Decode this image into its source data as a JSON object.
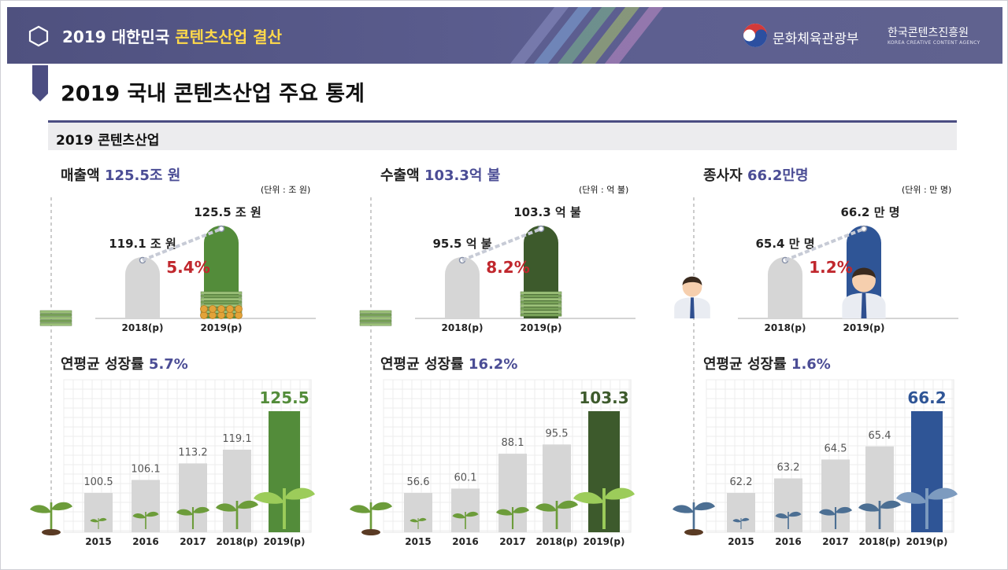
{
  "header": {
    "title_prefix": "2019 대한민국 ",
    "title_highlight": "콘텐츠산업 결산",
    "ministry": "문화체육관광부",
    "agency_kr": "한국콘텐츠진흥원",
    "agency_en": "KOREA CREATIVE CONTENT AGENCY"
  },
  "page_title": "2019 국내 콘텐츠산업 주요 통계",
  "section_title": "2019 콘텐츠산업",
  "colors": {
    "header_bg": "#55578a",
    "accent": "#4b4d95",
    "rate_red": "#c0272d",
    "green": "#538c3a",
    "dark_green": "#3d5a2c",
    "blue": "#2f5596",
    "gray_bar": "#d6d6d6"
  },
  "chart_data": [
    {
      "type": "bar",
      "name": "sales",
      "stat_label": "매출액",
      "stat_value": "125.5조 원",
      "unit_note": "(단위 : 조 원)",
      "comparison": {
        "categories": [
          "2018(p)",
          "2019(p)"
        ],
        "values": [
          119.1,
          125.5
        ],
        "value_labels": [
          "119.1 조 원",
          "125.5 조 원"
        ],
        "change_rate": "5.4%"
      },
      "growth_label": "연평균 성장률",
      "growth_rate": "5.7%",
      "categories": [
        "2015",
        "2016",
        "2017",
        "2018(p)",
        "2019(p)"
      ],
      "values": [
        100.5,
        106.1,
        113.2,
        119.1,
        125.5
      ],
      "value_labels": [
        "100.5",
        "106.1",
        "113.2",
        "119.1",
        "125.5"
      ],
      "highlight_color": "#538c3a",
      "theme": "money"
    },
    {
      "type": "bar",
      "name": "exports",
      "stat_label": "수출액",
      "stat_value": "103.3억 불",
      "unit_note": "(단위 : 억 불)",
      "comparison": {
        "categories": [
          "2018(p)",
          "2019(p)"
        ],
        "values": [
          95.5,
          103.3
        ],
        "value_labels": [
          "95.5 억 불",
          "103.3 억 불"
        ],
        "change_rate": "8.2%"
      },
      "growth_label": "연평균 성장률",
      "growth_rate": "16.2%",
      "categories": [
        "2015",
        "2016",
        "2017",
        "2018(p)",
        "2019(p)"
      ],
      "values": [
        56.6,
        60.1,
        88.1,
        95.5,
        103.3
      ],
      "value_labels": [
        "56.6",
        "60.1",
        "88.1",
        "95.5",
        "103.3"
      ],
      "highlight_color": "#3d5a2c",
      "theme": "money"
    },
    {
      "type": "bar",
      "name": "employees",
      "stat_label": "종사자",
      "stat_value": "66.2만명",
      "unit_note": "(단위 : 만 명)",
      "comparison": {
        "categories": [
          "2018(p)",
          "2019(p)"
        ],
        "values": [
          65.4,
          66.2
        ],
        "value_labels": [
          "65.4 만 명",
          "66.2 만 명"
        ],
        "change_rate": "1.2%"
      },
      "growth_label": "연평균 성장률",
      "growth_rate": "1.6%",
      "categories": [
        "2015",
        "2016",
        "2017",
        "2018(p)",
        "2019(p)"
      ],
      "values": [
        62.2,
        63.2,
        64.5,
        65.4,
        66.2
      ],
      "value_labels": [
        "62.2",
        "63.2",
        "64.5",
        "65.4",
        "66.2"
      ],
      "highlight_color": "#2f5596",
      "theme": "people"
    }
  ]
}
